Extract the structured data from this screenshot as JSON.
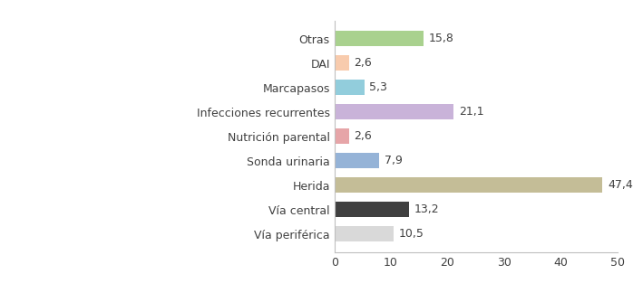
{
  "chart_data": {
    "type": "bar",
    "orientation": "horizontal",
    "categories": [
      "Otras",
      "DAI",
      "Marcapasos",
      "Infecciones recurrentes",
      "Nutrición parental",
      "Sonda urinaria",
      "Herida",
      "Vía central",
      "Vía periférica"
    ],
    "values": [
      15.8,
      2.6,
      5.3,
      21.1,
      2.6,
      7.9,
      47.4,
      13.2,
      10.5
    ],
    "value_labels": [
      "15,8",
      "2,6",
      "5,3",
      "21,1",
      "2,6",
      "7,9",
      "47,4",
      "13,2",
      "10,5"
    ],
    "colors": [
      "#a9d18e",
      "#f8cbad",
      "#92cddc",
      "#c9b3d9",
      "#e6a5a8",
      "#95b3d7",
      "#c4bd97",
      "#404040",
      "#d9d9d9"
    ],
    "xlim": [
      0,
      50
    ],
    "xticks": [
      0,
      10,
      20,
      30,
      40,
      50
    ],
    "grid": false,
    "data_labels": true
  }
}
